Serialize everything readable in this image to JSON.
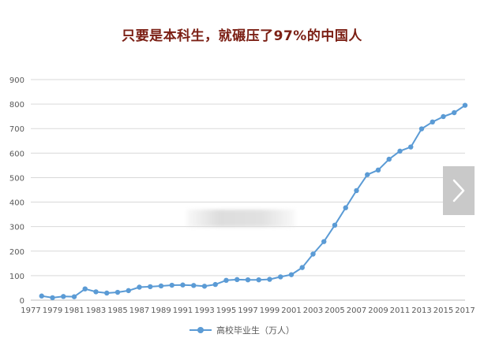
{
  "headline": "只要是本科生，就碾压了97%的中国人",
  "nav": {
    "next_icon": "chevron-right-icon"
  },
  "colors": {
    "line": "#5b9bd5",
    "headline": "#7b1f14",
    "grid": "#d9d9d9",
    "axis_text": "#595959"
  },
  "chart_data": {
    "type": "line",
    "title": "",
    "xlabel": "",
    "ylabel": "",
    "ylim": [
      0,
      900
    ],
    "yticks": [
      "0",
      "100",
      "200",
      "300",
      "400",
      "500",
      "600",
      "700",
      "800",
      "900"
    ],
    "xticks": [
      "1977",
      "1979",
      "1981",
      "1983",
      "1985",
      "1987",
      "1989",
      "1991",
      "1993",
      "1995",
      "1997",
      "1999",
      "2001",
      "2003",
      "2005",
      "2007",
      "2009",
      "2011",
      "2013",
      "2015",
      "2017"
    ],
    "grid": true,
    "legend_position": "bottom",
    "series": [
      {
        "name": "高校毕业生（万人）",
        "x": [
          1978,
          1979,
          1980,
          1981,
          1982,
          1983,
          1984,
          1985,
          1986,
          1987,
          1988,
          1989,
          1990,
          1991,
          1992,
          1993,
          1994,
          1995,
          1996,
          1997,
          1998,
          1999,
          2000,
          2001,
          2002,
          2003,
          2004,
          2005,
          2006,
          2007,
          2008,
          2009,
          2010,
          2011,
          2012,
          2013,
          2014,
          2015,
          2016,
          2017
        ],
        "values": [
          17,
          10,
          15,
          14,
          46,
          34,
          29,
          32,
          39,
          53,
          55,
          58,
          61,
          62,
          60,
          57,
          64,
          81,
          84,
          83,
          83,
          85,
          95,
          104,
          133,
          188,
          239,
          306,
          377,
          447,
          512,
          531,
          575,
          608,
          625,
          699,
          727,
          749,
          765,
          795
        ]
      }
    ]
  }
}
